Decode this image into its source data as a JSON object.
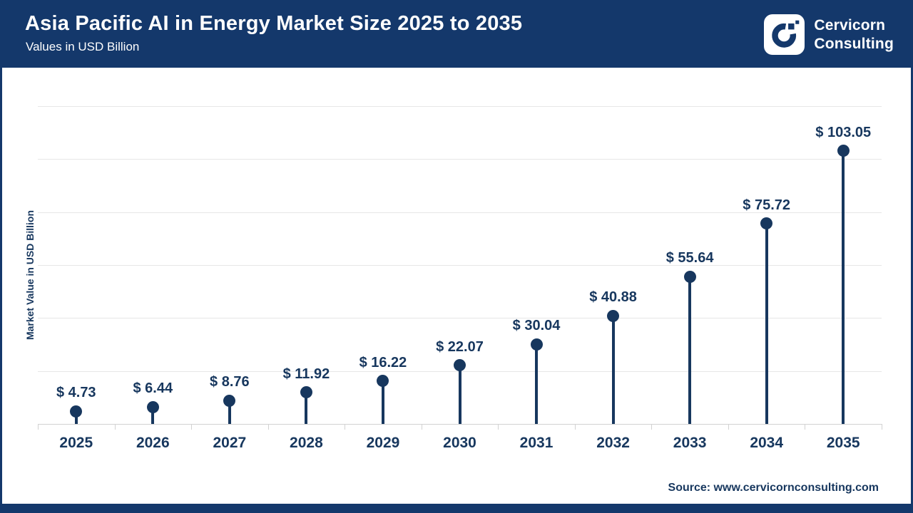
{
  "header": {
    "title": "Asia Pacific AI in Energy Market Size 2025 to 2035",
    "subtitle": "Values in USD Billion",
    "logo": {
      "icon": "cervicorn-c-logo",
      "line1": "Cervicorn",
      "line2": "Consulting"
    }
  },
  "chart_data": {
    "type": "lollipop",
    "title": "Asia Pacific AI in Energy Market Size 2025 to 2035",
    "subtitle": "Values in USD Billion",
    "categories": [
      "2025",
      "2026",
      "2027",
      "2028",
      "2029",
      "2030",
      "2031",
      "2032",
      "2033",
      "2034",
      "2035"
    ],
    "values": [
      4.73,
      6.44,
      8.76,
      11.92,
      16.22,
      22.07,
      30.04,
      40.88,
      55.64,
      75.72,
      103.05
    ],
    "value_labels": [
      "$ 4.73",
      "$ 6.44",
      "$ 8.76",
      "$ 11.92",
      "$ 16.22",
      "$ 22.07",
      "$ 30.04",
      "$ 40.88",
      "$ 55.64",
      "$ 75.72",
      "$ 103.05"
    ],
    "xlabel": "",
    "ylabel": "Market Value in USD Billion",
    "ylim": [
      0,
      120
    ],
    "gridline_step": 20,
    "grid": "horizontal-only",
    "y_tick_labels_shown": false,
    "legend": "none",
    "marker_color": "#17375E"
  },
  "footer": {
    "source": "Source: www.cervicornconsulting.com"
  },
  "colors": {
    "banner_navy": "#14386B",
    "chart_navy": "#17375E",
    "gridline_gray": "#E7E7E7",
    "axis_gray": "#D2D2D2",
    "background": "#FFFFFF",
    "text_white": "#FFFFFF"
  }
}
